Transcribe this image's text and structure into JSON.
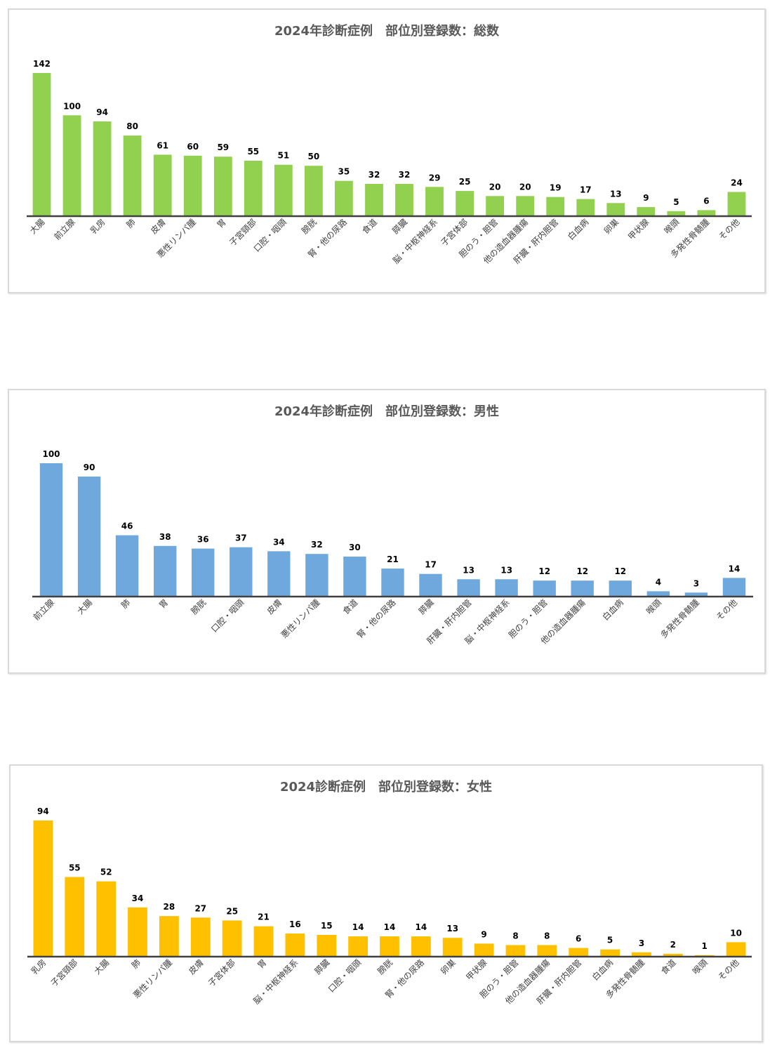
{
  "chart_data": [
    {
      "type": "bar",
      "title": "2024年診断症例　部位別登録数：総数",
      "color": "#92d050",
      "ylim": [
        0,
        142
      ],
      "categories": [
        "大腸",
        "前立腺",
        "乳房",
        "肺",
        "皮膚",
        "悪性リンパ腫",
        "胃",
        "子宮頸部",
        "口腔・咽頭",
        "膀胱",
        "腎・他の尿路",
        "食道",
        "膵臓",
        "脳・中枢神経系",
        "子宮体部",
        "胆のう・胆管",
        "他の造血器腫瘍",
        "肝臓・肝内胆管",
        "白血病",
        "卵巣",
        "甲状腺",
        "喉頭",
        "多発性骨髄腫",
        "その他"
      ],
      "values": [
        142,
        100,
        94,
        80,
        61,
        60,
        59,
        55,
        51,
        50,
        35,
        32,
        32,
        29,
        25,
        20,
        20,
        19,
        17,
        13,
        9,
        5,
        6,
        24
      ],
      "grid": false,
      "legend": "none"
    },
    {
      "type": "bar",
      "title": "2024年診断症例　部位別登録数：男性",
      "color": "#6fa8dc",
      "ylim": [
        0,
        100
      ],
      "categories": [
        "前立腺",
        "大腸",
        "肺",
        "胃",
        "膀胱",
        "口腔・咽頭",
        "皮膚",
        "悪性リンパ腫",
        "食道",
        "腎・他の尿路",
        "膵臓",
        "肝臓・肝内胆管",
        "脳・中枢神経系",
        "胆のう・胆管",
        "他の造血器腫瘍",
        "白血病",
        "喉頭",
        "多発性骨髄腫",
        "その他"
      ],
      "values": [
        100,
        90,
        46,
        38,
        36,
        37,
        34,
        32,
        30,
        21,
        17,
        13,
        13,
        12,
        12,
        12,
        4,
        3,
        14
      ],
      "grid": false,
      "legend": "none"
    },
    {
      "type": "bar",
      "title": "2024診断症例　部位別登録数：女性",
      "color": "#ffc000",
      "ylim": [
        0,
        94
      ],
      "categories": [
        "乳房",
        "子宮頸部",
        "大腸",
        "肺",
        "悪性リンパ腫",
        "皮膚",
        "子宮体部",
        "胃",
        "脳・中枢神経系",
        "膵臓",
        "口腔・咽頭",
        "膀胱",
        "腎・他の尿路",
        "卵巣",
        "甲状腺",
        "胆のう・胆管",
        "他の造血器腫瘍",
        "肝臓・肝内胆管",
        "白血病",
        "多発性骨髄腫",
        "食道",
        "喉頭",
        "その他"
      ],
      "values": [
        94,
        55,
        52,
        34,
        28,
        27,
        25,
        21,
        16,
        15,
        14,
        14,
        14,
        13,
        9,
        8,
        8,
        6,
        5,
        3,
        2,
        1,
        10
      ],
      "grid": false,
      "legend": "none"
    }
  ]
}
